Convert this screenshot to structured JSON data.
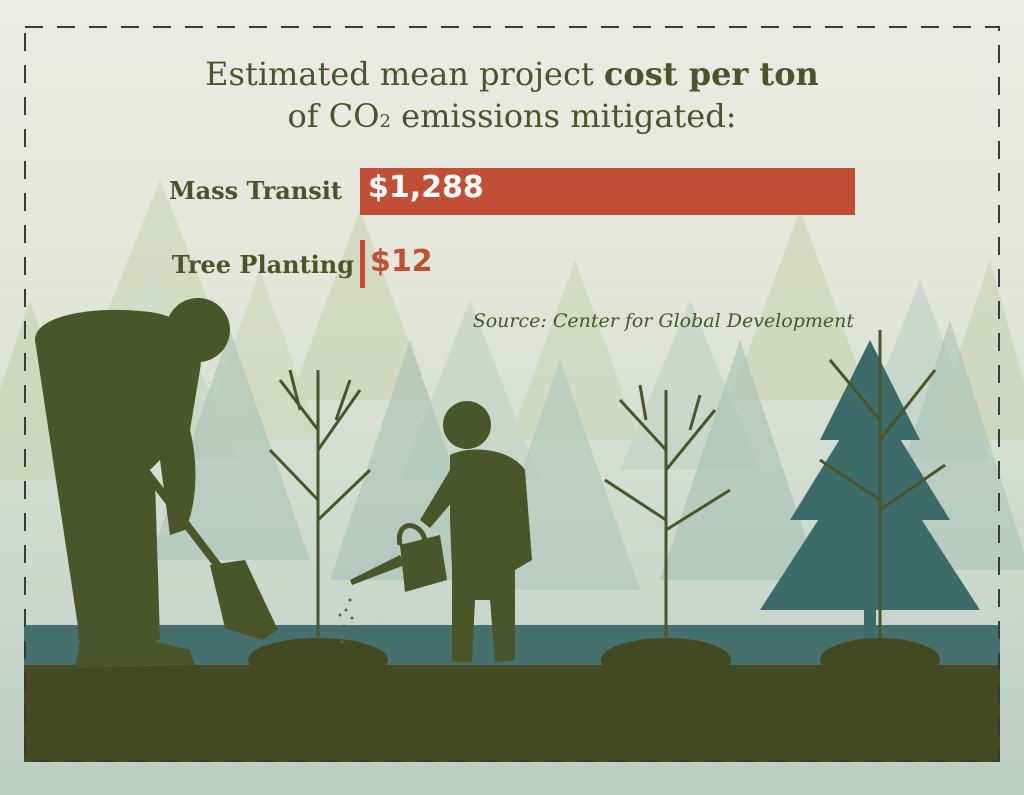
{
  "title": {
    "line1_prefix": "Estimated mean project ",
    "line1_bold": "cost per ton",
    "line2_prefix": "of CO",
    "line2_subscript": "2",
    "line2_suffix": " emissions mitigated:"
  },
  "source": "Source: Center for Global Development",
  "colors": {
    "background": "#ecebe6",
    "bar": "#c24f35",
    "text": "#4a5529",
    "silhouette": "#4a5529",
    "ground": "#434a21",
    "teal_tree": "#3d6b6a"
  },
  "chart_data": {
    "type": "bar",
    "orientation": "horizontal",
    "categories": [
      "Mass Transit",
      "Tree Planting"
    ],
    "values": [
      1288,
      12
    ],
    "value_labels": [
      "$1,288",
      "$12"
    ],
    "title": "Estimated mean project cost per ton of CO₂ emissions mitigated:",
    "xlabel": "",
    "ylabel": "",
    "xlim": [
      0,
      1288
    ],
    "grid": false,
    "legend": "none"
  }
}
